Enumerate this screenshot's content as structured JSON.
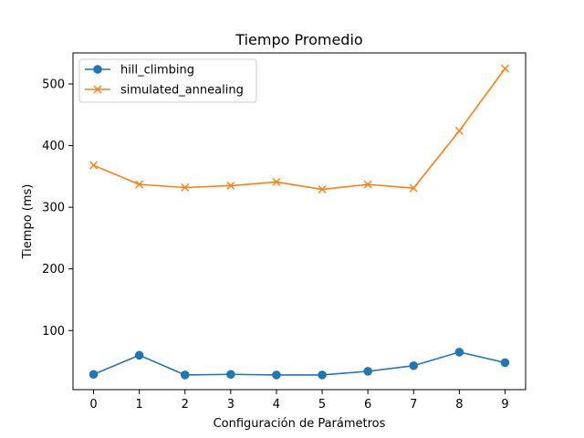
{
  "chart_data": {
    "type": "line",
    "title": "Tiempo Promedio",
    "xlabel": "Configuración de Parámetros",
    "ylabel": "Tiempo (ms)",
    "x": [
      0,
      1,
      2,
      3,
      4,
      5,
      6,
      7,
      8,
      9
    ],
    "xlim": [
      -0.45,
      9.45
    ],
    "ylim": [
      4.2,
      550.3
    ],
    "x_ticks": [
      "0",
      "1",
      "2",
      "3",
      "4",
      "5",
      "6",
      "7",
      "8",
      "9"
    ],
    "y_ticks": [
      "100",
      "200",
      "300",
      "400",
      "500"
    ],
    "grid": false,
    "legend_position": "top-left",
    "series": [
      {
        "name": "hill_climbing",
        "color": "#1f77b4",
        "marker": "circle",
        "values": [
          29,
          60,
          28,
          29,
          28,
          28,
          34,
          43,
          65,
          48
        ]
      },
      {
        "name": "simulated_annealing",
        "color": "#ff7f0e",
        "marker": "x",
        "values": [
          368,
          337,
          332,
          335,
          341,
          329,
          337,
          331,
          424,
          525
        ]
      }
    ]
  }
}
